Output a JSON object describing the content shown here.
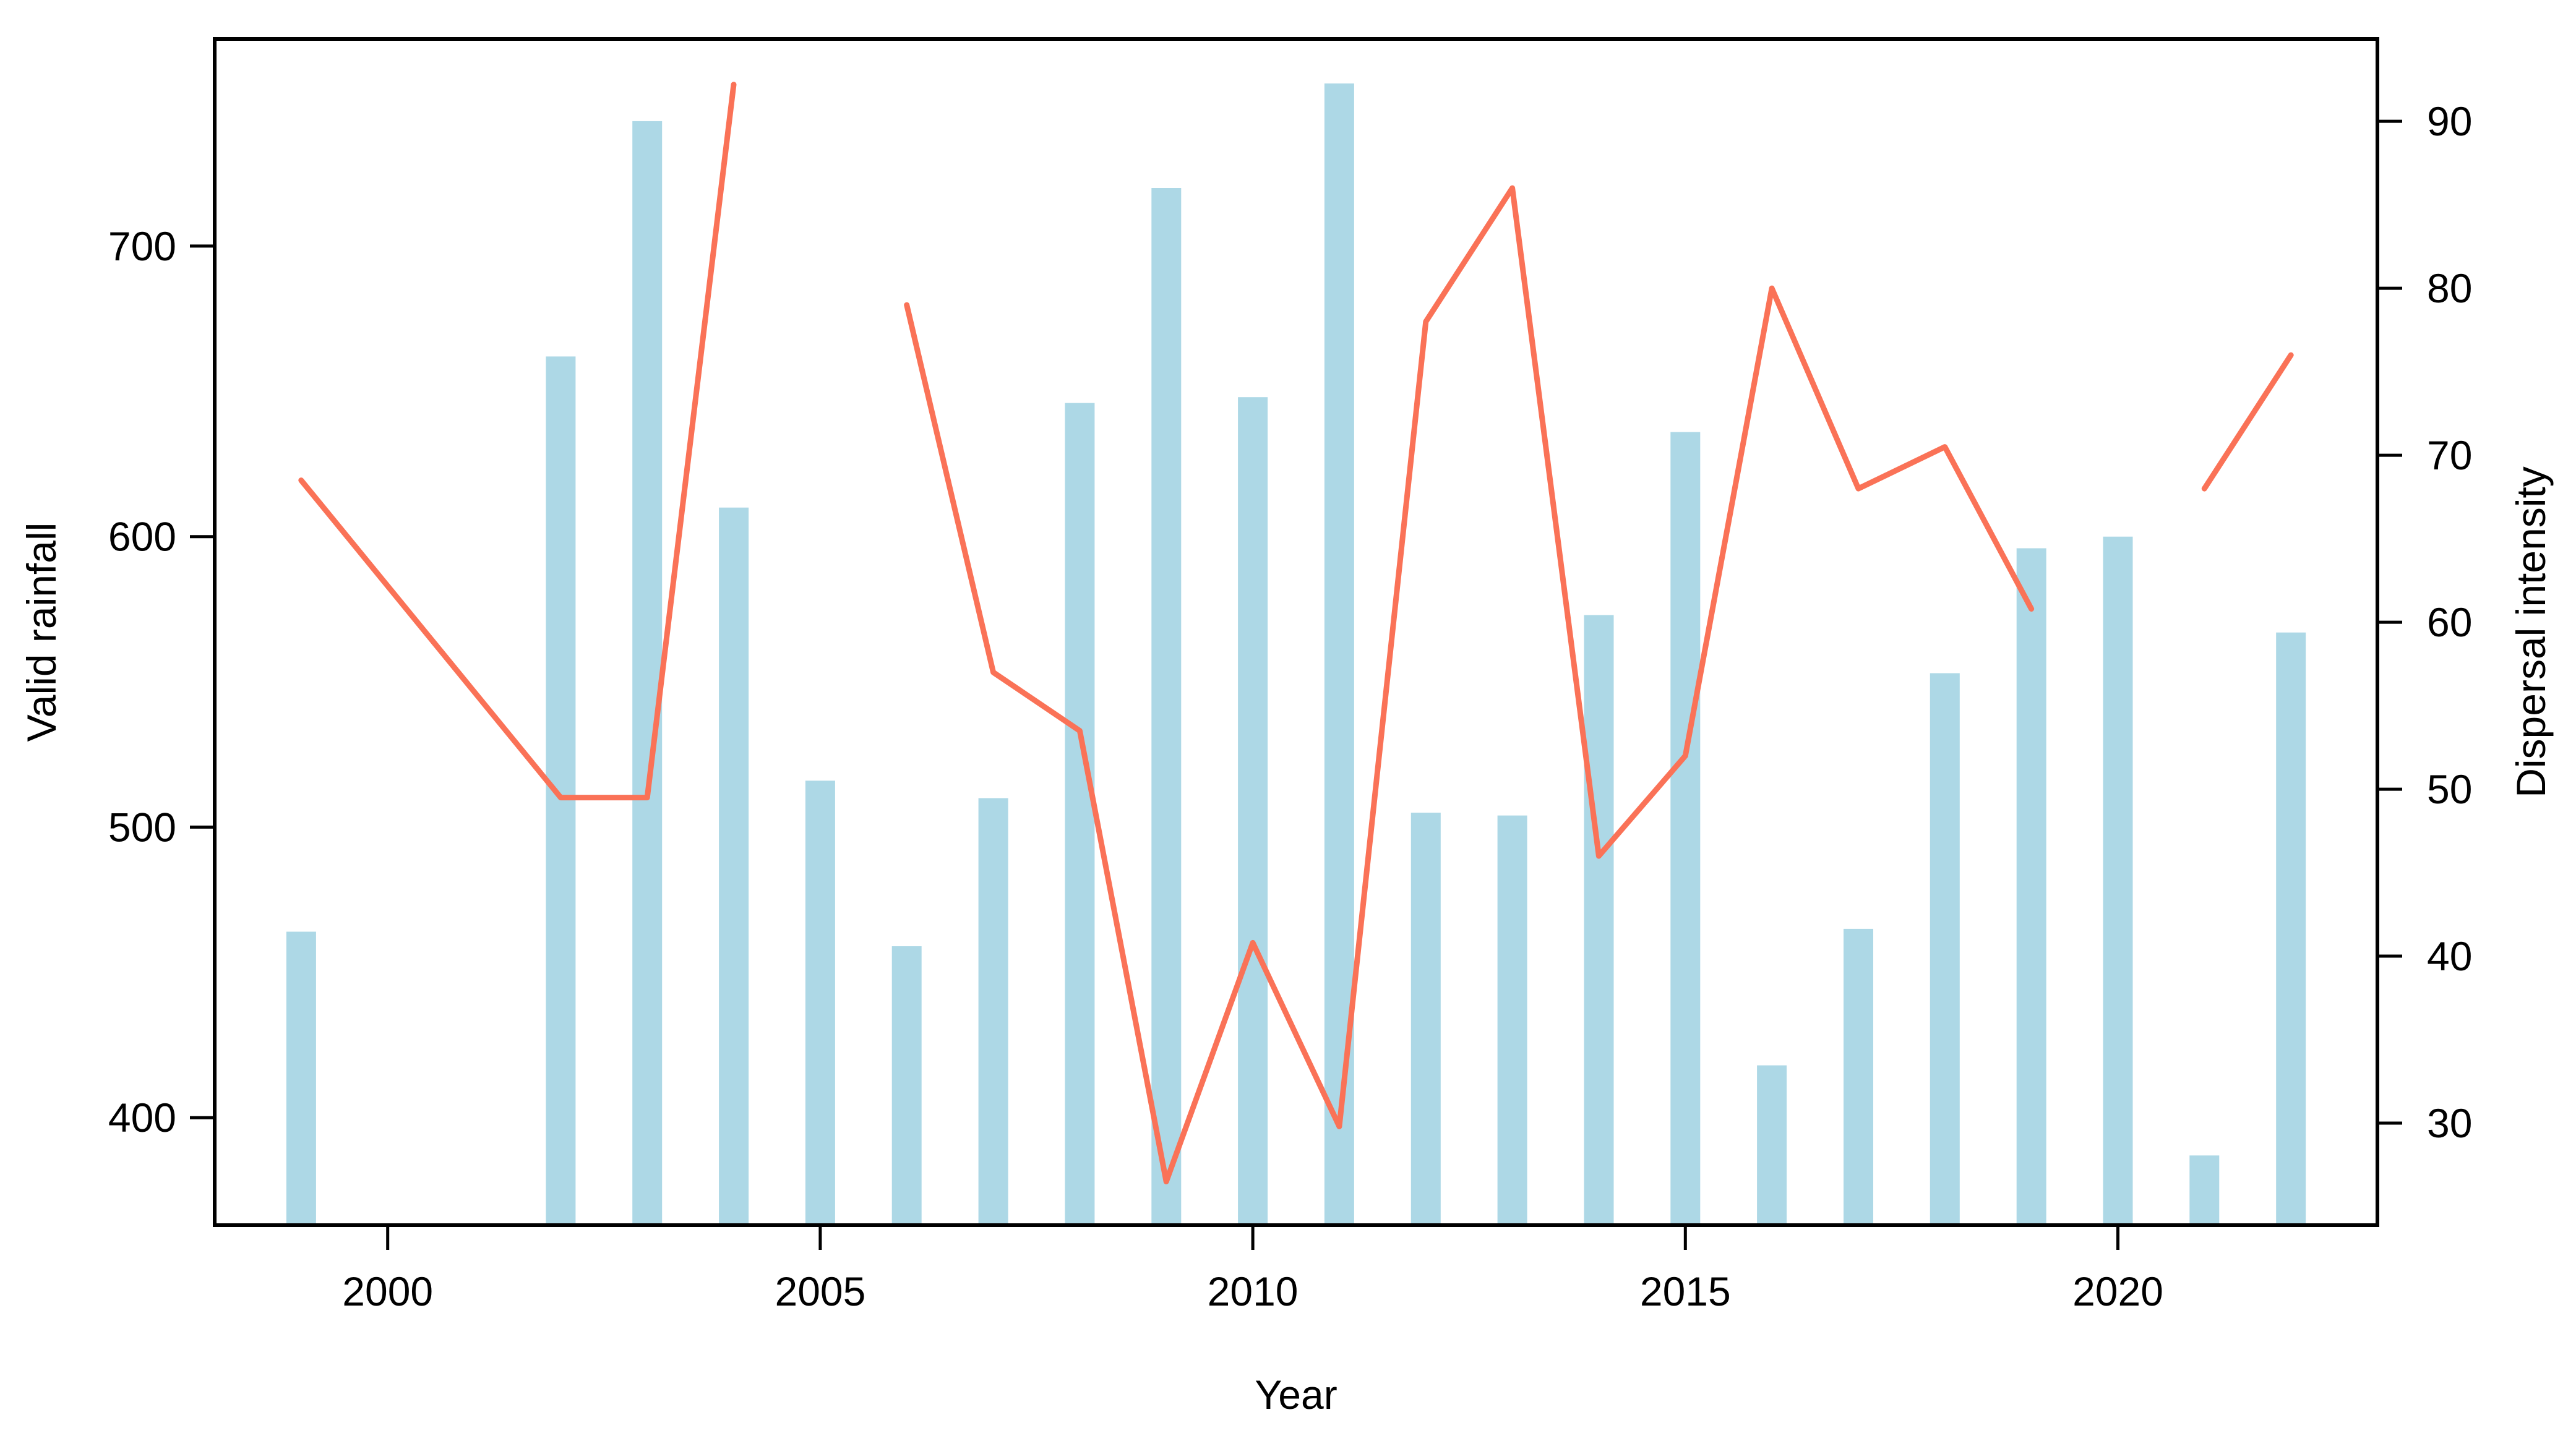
{
  "figure": {
    "background": "#ffffff"
  },
  "chart_data": {
    "type": "combo",
    "title": "",
    "xlabel": "Year",
    "ylabel": "Valid rainfall",
    "ylabel_right": "Dispersal intensity",
    "x_ticks": [
      2000,
      2005,
      2010,
      2015,
      2020
    ],
    "y_ticks_left": [
      400,
      500,
      600,
      700
    ],
    "y_ticks_right": [
      30,
      40,
      50,
      60,
      70,
      80,
      90
    ],
    "xlim": [
      1998,
      2023
    ],
    "ylim_left": [
      363,
      771.3
    ],
    "ylim_right": [
      23.89,
      94.93
    ],
    "grid": false,
    "legend": "none",
    "bar_width_years": 0.343,
    "categories": [
      1999,
      2000,
      2001,
      2002,
      2003,
      2004,
      2005,
      2006,
      2007,
      2008,
      2009,
      2010,
      2011,
      2012,
      2013,
      2014,
      2015,
      2016,
      2017,
      2018,
      2019,
      2020,
      2021,
      2022
    ],
    "series": [
      {
        "name": "Valid rainfall",
        "type": "bar",
        "axis": "left",
        "color": "#ADD8E6",
        "values": [
          464,
          null,
          null,
          662,
          743,
          610,
          516,
          459,
          510,
          646,
          720,
          648,
          756,
          505,
          504,
          573,
          636,
          418,
          465,
          553,
          596,
          600,
          387,
          567
        ]
      },
      {
        "name": "Dispersal intensity",
        "type": "line",
        "axis": "right",
        "color": "#FA7257",
        "stroke_width": 9,
        "segments": [
          [
            [
              1999,
              68.5
            ],
            [
              2002,
              49.5
            ],
            [
              2003,
              49.5
            ],
            [
              2004,
              92.2
            ]
          ],
          [
            [
              2006,
              79
            ],
            [
              2007,
              57
            ],
            [
              2008,
              53.5
            ],
            [
              2009,
              26.5
            ],
            [
              2010,
              40.8
            ],
            [
              2011,
              29.8
            ],
            [
              2012,
              78
            ],
            [
              2013,
              86
            ],
            [
              2014,
              46
            ],
            [
              2015,
              52
            ],
            [
              2016,
              80
            ],
            [
              2017,
              68
            ],
            [
              2018,
              70.5
            ],
            [
              2019,
              60.8
            ]
          ],
          [
            [
              2021,
              68
            ],
            [
              2022,
              76
            ]
          ]
        ]
      }
    ]
  }
}
